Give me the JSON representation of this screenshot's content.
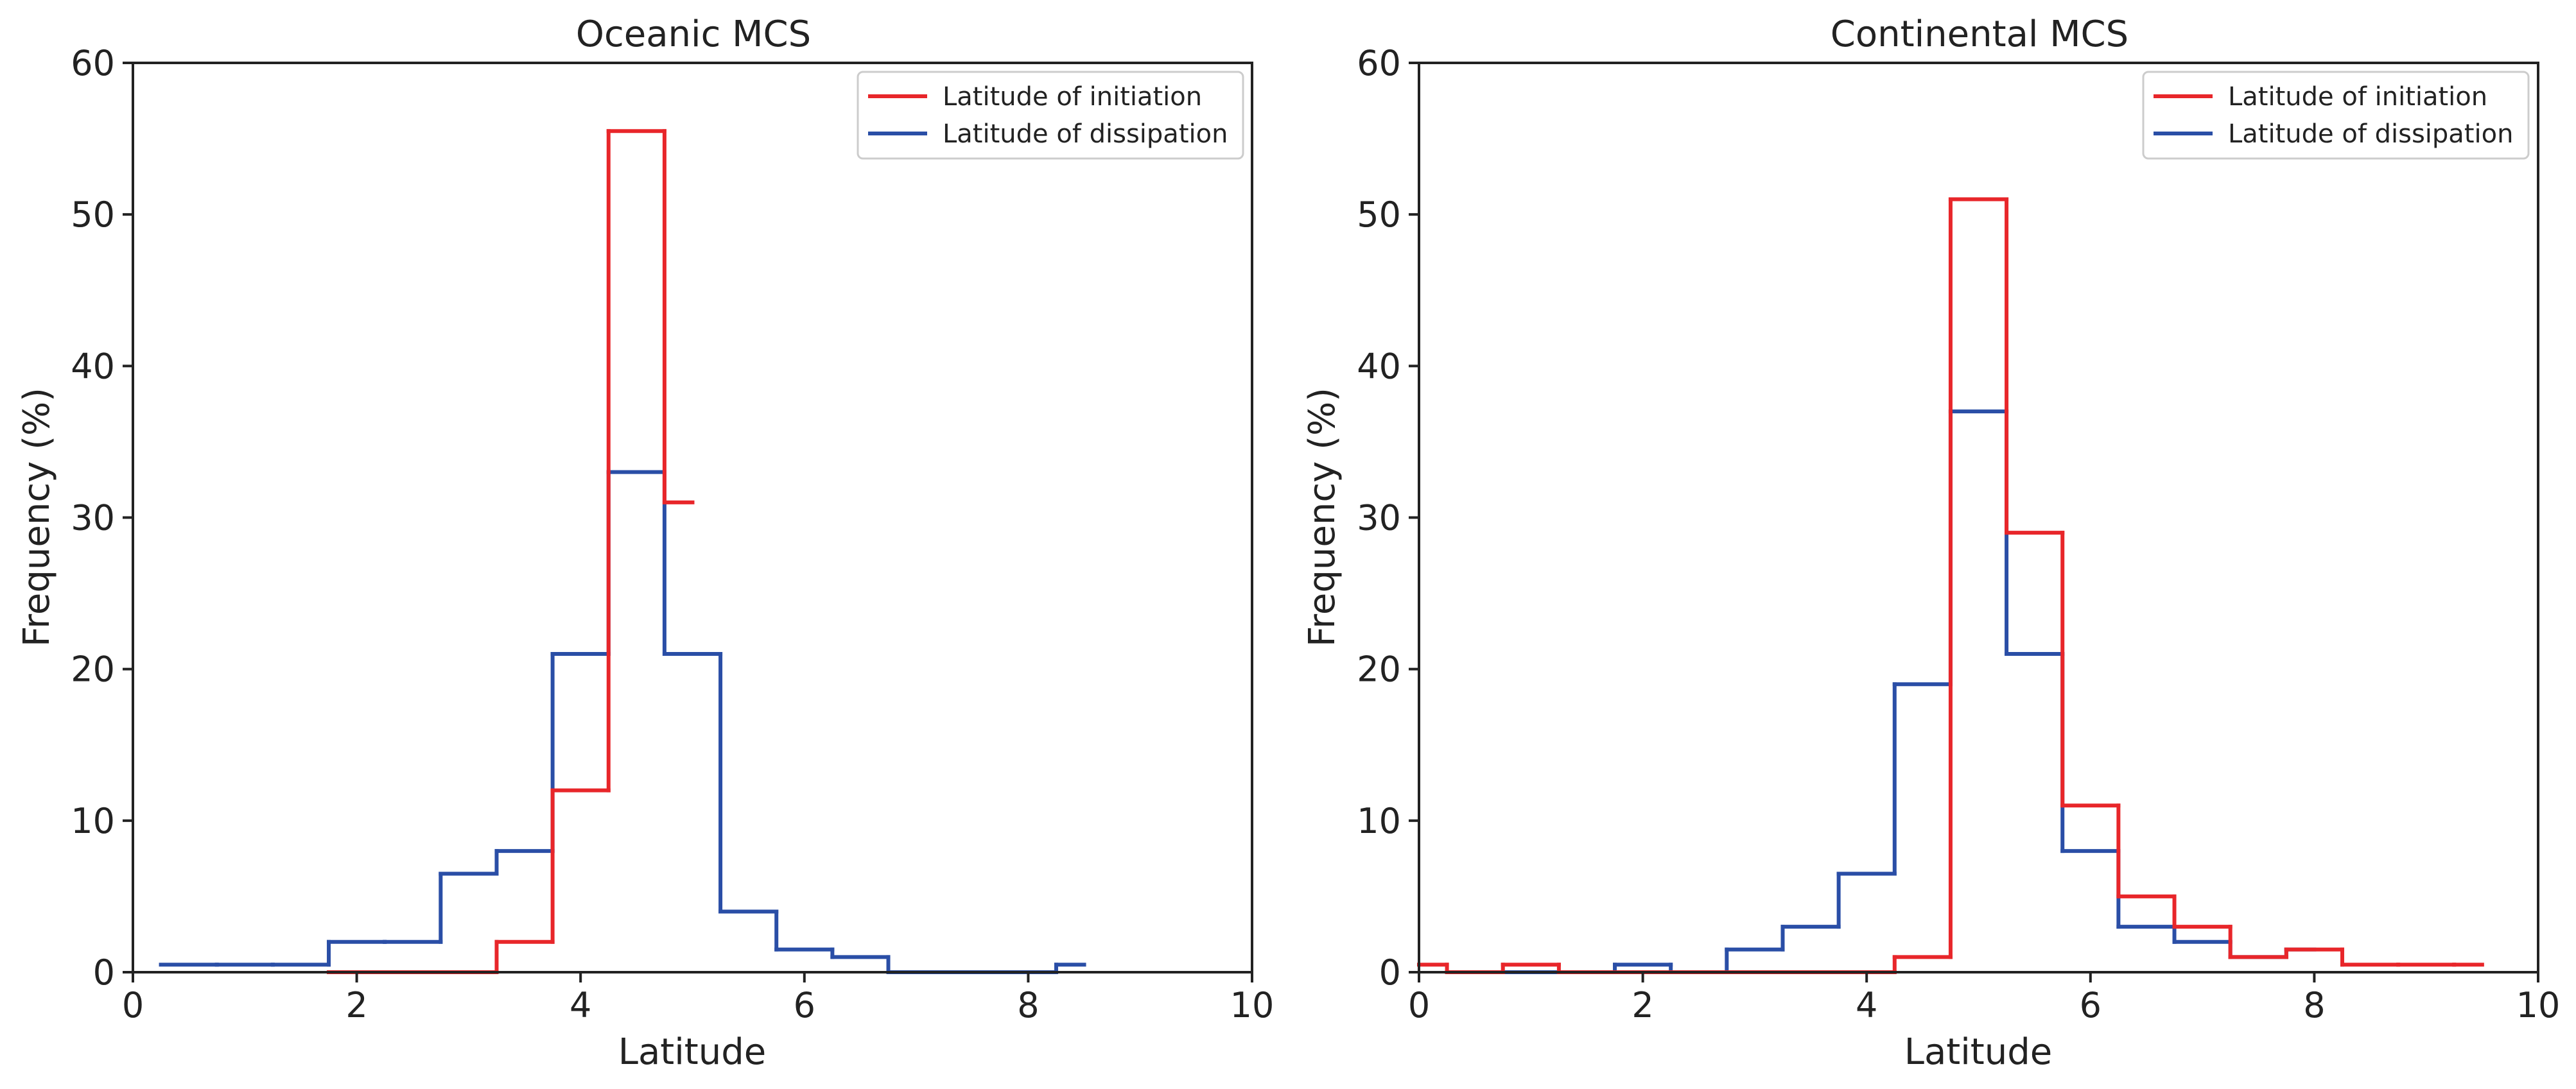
{
  "colors": {
    "initiation": "#e8262a",
    "dissipation": "#2a4ea6",
    "axis": "#222222",
    "legend_border": "#cccccc"
  },
  "chart_data": [
    {
      "type": "histogram-step",
      "title": "Oceanic MCS",
      "xlabel": "Latitude",
      "ylabel": "Frequency (%)",
      "xlim": [
        0,
        10
      ],
      "ylim": [
        0,
        60
      ],
      "xticks": [
        0,
        2,
        4,
        6,
        8,
        10
      ],
      "yticks": [
        0,
        10,
        20,
        30,
        40,
        50,
        60
      ],
      "xtick_labels": [
        "0",
        "2",
        "4",
        "6",
        "8",
        "10"
      ],
      "ytick_labels": [
        "0",
        "10",
        "20",
        "30",
        "40",
        "50",
        "60"
      ],
      "legend": [
        "Latitude of initiation",
        "Latitude of dissipation"
      ],
      "legend_position": "top-right",
      "grid": false,
      "series": [
        {
          "name": "Latitude of initiation",
          "color_key": "initiation",
          "edges": [
            1.75,
            2.25,
            2.75,
            3.25,
            3.75,
            4.25,
            4.75,
            5.0
          ],
          "values": [
            0,
            0,
            0,
            2,
            12,
            55.5,
            31
          ]
        },
        {
          "name": "Latitude of dissipation",
          "color_key": "dissipation",
          "edges": [
            0.25,
            0.75,
            1.25,
            1.75,
            2.25,
            2.75,
            3.25,
            3.75,
            4.25,
            4.75,
            5.25,
            5.75,
            6.25,
            6.75,
            7.25,
            7.75,
            8.25,
            8.5
          ],
          "values": [
            0.5,
            0.5,
            0.5,
            2,
            2,
            6.5,
            8,
            21,
            33,
            21,
            4,
            1.5,
            1,
            0,
            0,
            0,
            0.5
          ]
        }
      ]
    },
    {
      "type": "histogram-step",
      "title": "Continental MCS",
      "xlabel": "Latitude",
      "ylabel": "Frequency (%)",
      "xlim": [
        0,
        10
      ],
      "ylim": [
        0,
        60
      ],
      "xticks": [
        0,
        2,
        4,
        6,
        8,
        10
      ],
      "yticks": [
        0,
        10,
        20,
        30,
        40,
        50,
        60
      ],
      "xtick_labels": [
        "0",
        "2",
        "4",
        "6",
        "8",
        "10"
      ],
      "ytick_labels": [
        "0",
        "10",
        "20",
        "30",
        "40",
        "50",
        "60"
      ],
      "legend": [
        "Latitude of initiation",
        "Latitude of dissipation"
      ],
      "legend_position": "top-right",
      "grid": false,
      "series": [
        {
          "name": "Latitude of initiation",
          "color_key": "initiation",
          "edges": [
            0,
            0.25,
            0.75,
            1.25,
            1.75,
            2.25,
            2.75,
            3.25,
            3.75,
            4.25,
            4.75,
            5.25,
            5.75,
            6.25,
            6.75,
            7.25,
            7.75,
            8.25,
            8.75,
            9.25,
            9.5
          ],
          "values": [
            0.5,
            0,
            0.5,
            0,
            0,
            0,
            0,
            0,
            0,
            1,
            51,
            29,
            11,
            5,
            3,
            1,
            1.5,
            0.5,
            0.5,
            0.5
          ]
        },
        {
          "name": "Latitude of dissipation",
          "color_key": "dissipation",
          "edges": [
            0.25,
            0.75,
            1.25,
            1.75,
            2.25,
            2.75,
            3.25,
            3.75,
            4.25,
            4.75,
            5.25,
            5.75,
            6.25,
            6.75,
            7.25,
            7.75,
            8.0
          ],
          "values": [
            0,
            0,
            0,
            0.5,
            0,
            1.5,
            3,
            6.5,
            19,
            37,
            21,
            8,
            3,
            2,
            1,
            1.5
          ]
        }
      ]
    }
  ]
}
